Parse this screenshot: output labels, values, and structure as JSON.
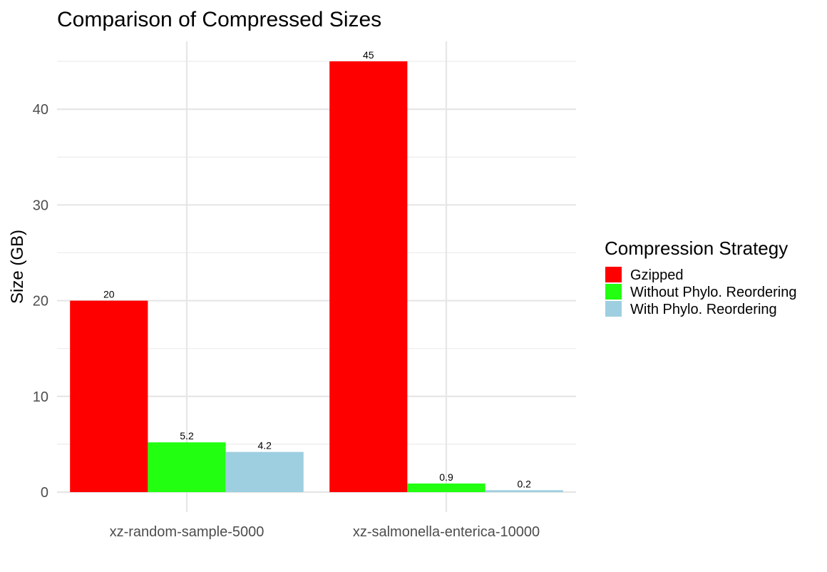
{
  "chart_data": {
    "type": "bar",
    "title": "Comparison of Compressed Sizes",
    "xlabel": "",
    "ylabel": "Size (GB)",
    "ylim": [
      0,
      47.25
    ],
    "yticks": [
      0,
      10,
      20,
      30,
      40
    ],
    "grid": true,
    "categories": [
      "xz-random-sample-5000",
      "xz-salmonella-enterica-10000"
    ],
    "series": [
      {
        "name": "Gzipped",
        "values": [
          20,
          45
        ],
        "labels": [
          "20",
          "45"
        ],
        "color": "#ff0000"
      },
      {
        "name": "Without Phylo. Reordering",
        "values": [
          5.2,
          0.9
        ],
        "labels": [
          "5.2",
          "0.9"
        ],
        "color": "#22ff11"
      },
      {
        "name": "With Phylo. Reordering",
        "values": [
          4.2,
          0.2
        ],
        "labels": [
          "4.2",
          "0.2"
        ],
        "color": "#9ecfe0"
      }
    ],
    "legend": {
      "title": "Compression Strategy",
      "placement": "right"
    }
  }
}
